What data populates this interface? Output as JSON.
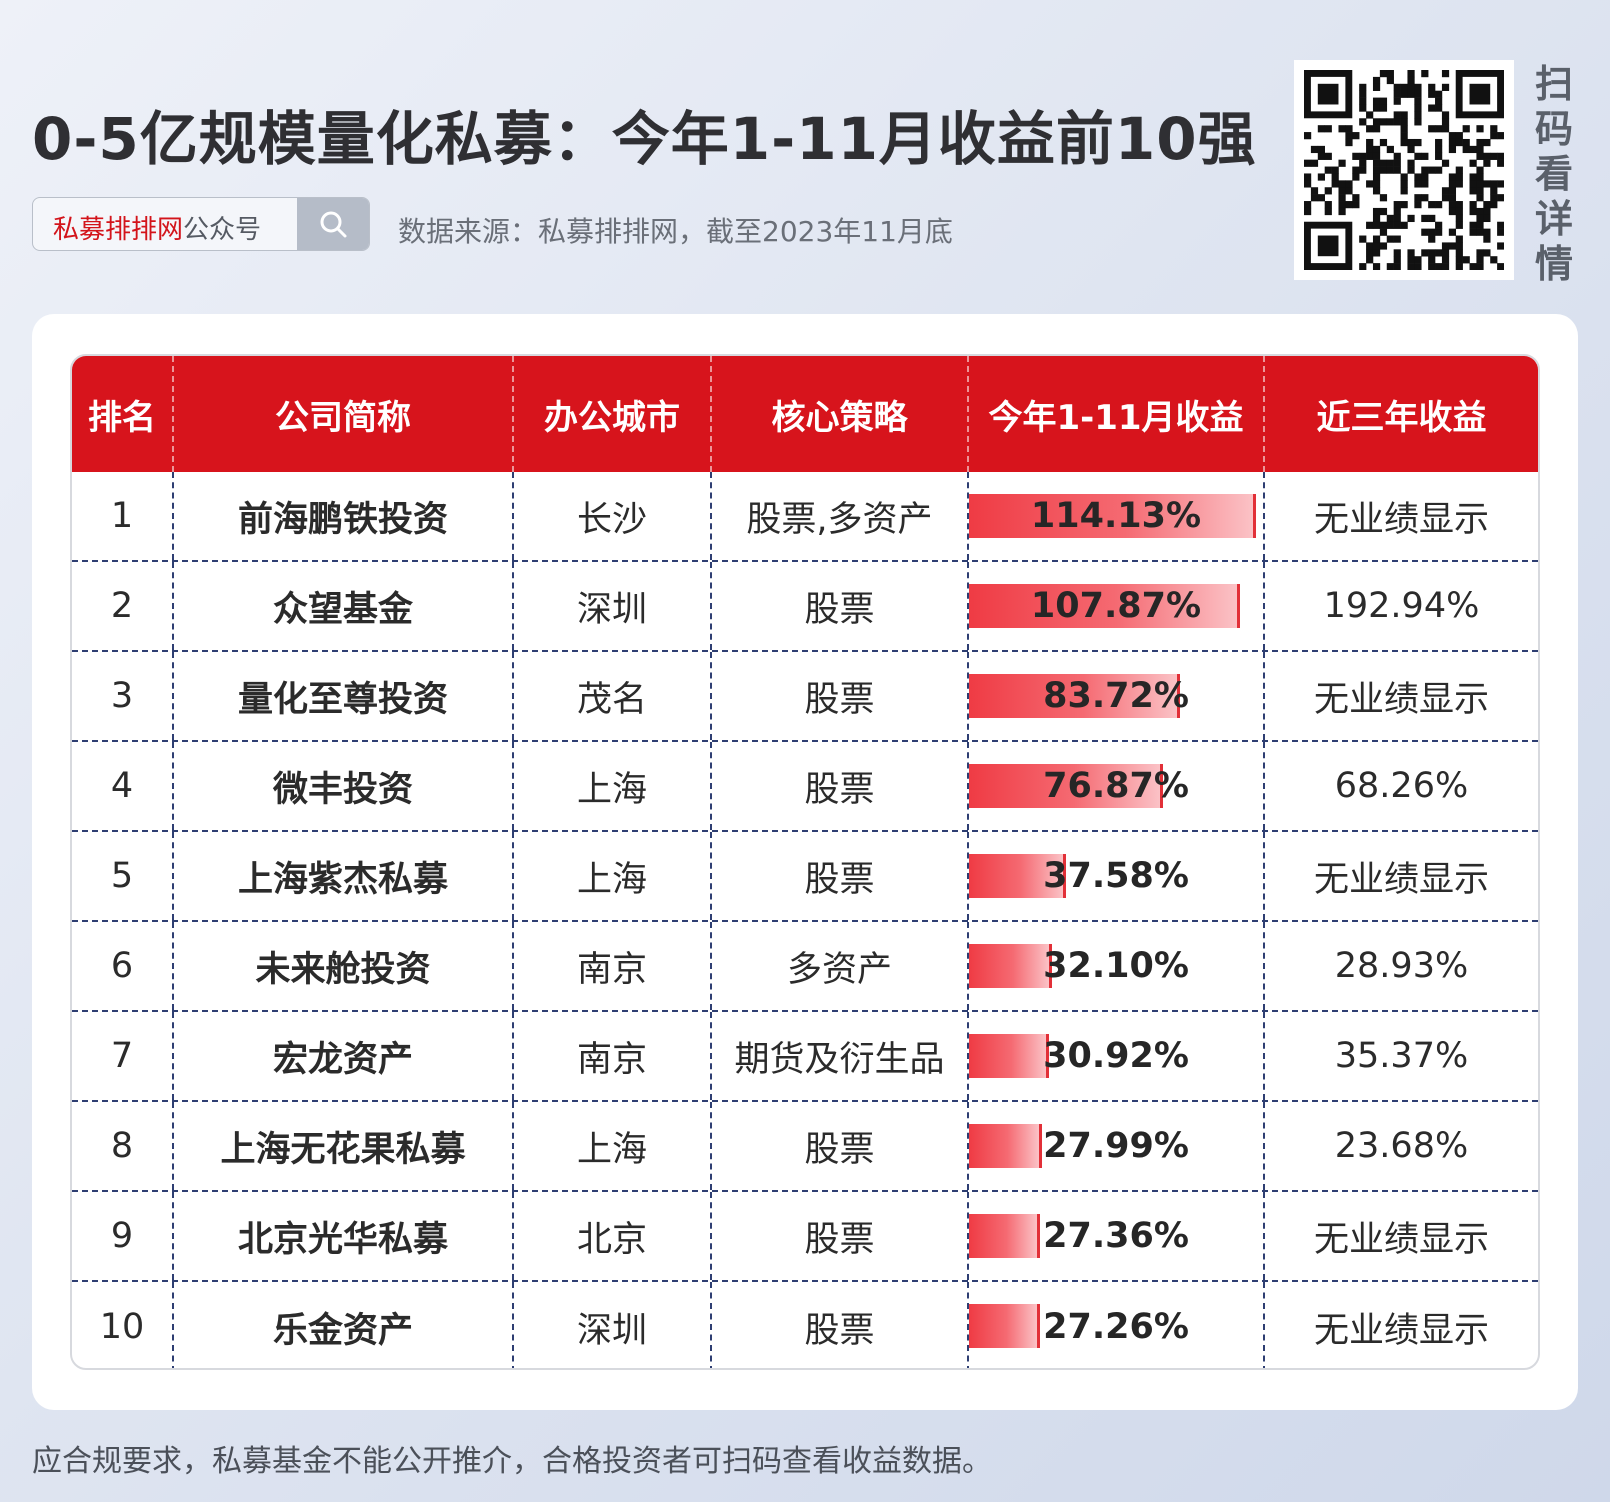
{
  "title": "0-5亿规模量化私募：今年1-11月收益前10强",
  "search": {
    "brand": "私募排排网",
    "suffix": "公众号"
  },
  "source": "数据来源：私募排排网，截至2023年11月底",
  "qr_caption": [
    "扫",
    "码",
    "看",
    "详",
    "情"
  ],
  "table": {
    "headers": [
      "排名",
      "公司简称",
      "办公城市",
      "核心策略",
      "今年1-11月收益",
      "近三年收益"
    ],
    "rows": [
      {
        "rank": "1",
        "company": "前海鹏铁投资",
        "city": "长沙",
        "strategy": "股票,多资产",
        "ytd": "114.13%",
        "ytd_value": 114.13,
        "three_year": "无业绩显示"
      },
      {
        "rank": "2",
        "company": "众望基金",
        "city": "深圳",
        "strategy": "股票",
        "ytd": "107.87%",
        "ytd_value": 107.87,
        "three_year": "192.94%"
      },
      {
        "rank": "3",
        "company": "量化至尊投资",
        "city": "茂名",
        "strategy": "股票",
        "ytd": "83.72%",
        "ytd_value": 83.72,
        "three_year": "无业绩显示"
      },
      {
        "rank": "4",
        "company": "微丰投资",
        "city": "上海",
        "strategy": "股票",
        "ytd": "76.87%",
        "ytd_value": 76.87,
        "three_year": "68.26%"
      },
      {
        "rank": "5",
        "company": "上海紫杰私募",
        "city": "上海",
        "strategy": "股票",
        "ytd": "37.58%",
        "ytd_value": 37.58,
        "three_year": "无业绩显示"
      },
      {
        "rank": "6",
        "company": "未来舱投资",
        "city": "南京",
        "strategy": "多资产",
        "ytd": "32.10%",
        "ytd_value": 32.1,
        "three_year": "28.93%"
      },
      {
        "rank": "7",
        "company": "宏龙资产",
        "city": "南京",
        "strategy": "期货及衍生品",
        "ytd": "30.92%",
        "ytd_value": 30.92,
        "three_year": "35.37%"
      },
      {
        "rank": "8",
        "company": "上海无花果私募",
        "city": "上海",
        "strategy": "股票",
        "ytd": "27.99%",
        "ytd_value": 27.99,
        "three_year": "23.68%"
      },
      {
        "rank": "9",
        "company": "北京光华私募",
        "city": "北京",
        "strategy": "股票",
        "ytd": "27.36%",
        "ytd_value": 27.36,
        "three_year": "无业绩显示"
      },
      {
        "rank": "10",
        "company": "乐金资产",
        "city": "深圳",
        "strategy": "股票",
        "ytd": "27.26%",
        "ytd_value": 27.26,
        "three_year": "无业绩显示"
      }
    ]
  },
  "footer": "应合规要求，私募基金不能公开推介，合格投资者可扫码查看收益数据。",
  "colors": {
    "header_red": "#d7141c",
    "bar_red": "#ef3b44",
    "divider": "#2e3e72"
  },
  "icons": {
    "search": "search-icon",
    "qr": "qr-code-icon"
  }
}
